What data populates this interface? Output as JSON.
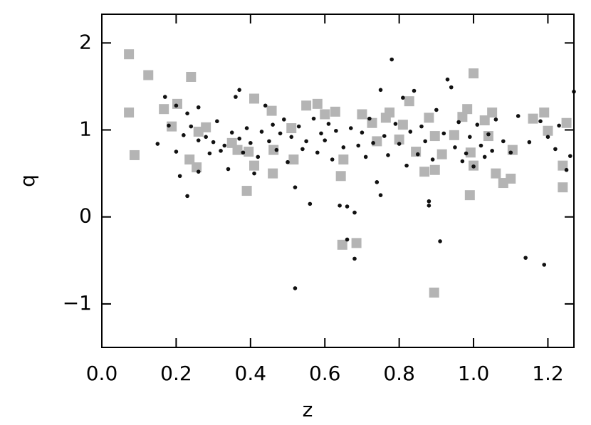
{
  "chart_data": {
    "type": "scatter",
    "xlabel": "z",
    "ylabel": "q",
    "xlim": [
      0,
      1.27
    ],
    "ylim": [
      -1.5,
      2.33
    ],
    "xticks": [
      {
        "value": 0,
        "label": "0.0"
      },
      0.2,
      0.4,
      0.6,
      0.8,
      {
        "value": 1,
        "label": "1.0"
      },
      1.2
    ],
    "yticks": [
      {
        "value": -1,
        "label": "−1"
      },
      0,
      1,
      2
    ],
    "series": [
      {
        "color": "#b4b4b4",
        "marker": "square",
        "x": [
          0.073,
          0.073,
          0.088,
          0.125,
          0.167,
          0.24,
          0.203,
          0.188,
          0.236,
          0.255,
          0.26,
          0.28,
          0.35,
          0.365,
          0.395,
          0.41,
          0.41,
          0.39,
          0.462,
          0.457,
          0.46,
          0.51,
          0.516,
          0.55,
          0.58,
          0.6,
          0.628,
          0.643,
          0.65,
          0.647,
          0.685,
          0.7,
          0.727,
          0.74,
          0.764,
          0.774,
          0.8,
          0.81,
          0.845,
          0.827,
          0.868,
          0.88,
          0.896,
          0.915,
          0.896,
          0.894,
          0.948,
          0.97,
          0.983,
          1.0,
          0.992,
          1.0,
          1.03,
          1.04,
          1.05,
          1.06,
          1.08,
          0.99,
          1.1,
          1.105,
          1.16,
          1.19,
          1.2,
          1.24,
          1.25,
          1.24
        ],
        "values": [
          1.87,
          1.2,
          0.71,
          1.63,
          1.24,
          1.61,
          1.3,
          1.04,
          0.66,
          0.57,
          0.98,
          1.03,
          0.85,
          0.77,
          0.75,
          1.36,
          0.59,
          0.3,
          0.77,
          1.22,
          0.5,
          1.02,
          0.66,
          1.28,
          1.3,
          1.18,
          1.21,
          0.47,
          0.66,
          -0.32,
          -0.3,
          1.18,
          1.08,
          0.87,
          1.14,
          1.2,
          0.89,
          1.06,
          0.75,
          1.33,
          0.52,
          1.14,
          0.93,
          0.72,
          0.54,
          -0.87,
          0.94,
          1.15,
          1.24,
          1.65,
          0.74,
          0.59,
          1.11,
          0.93,
          1.2,
          0.5,
          0.39,
          0.25,
          0.44,
          0.77,
          1.13,
          1.2,
          0.99,
          0.34,
          1.08,
          0.59
        ]
      },
      {
        "color": "#111111",
        "marker": "circle",
        "x": [
          0.15,
          0.17,
          0.18,
          0.2,
          0.2,
          0.21,
          0.22,
          0.23,
          0.23,
          0.24,
          0.26,
          0.26,
          0.26,
          0.28,
          0.29,
          0.3,
          0.31,
          0.32,
          0.33,
          0.34,
          0.35,
          0.36,
          0.37,
          0.37,
          0.38,
          0.39,
          0.4,
          0.41,
          0.42,
          0.43,
          0.44,
          0.45,
          0.46,
          0.47,
          0.48,
          0.49,
          0.5,
          0.51,
          0.52,
          0.52,
          0.53,
          0.54,
          0.55,
          0.56,
          0.57,
          0.58,
          0.59,
          0.6,
          0.61,
          0.62,
          0.63,
          0.64,
          0.65,
          0.66,
          0.66,
          0.67,
          0.68,
          0.68,
          0.69,
          0.7,
          0.71,
          0.72,
          0.73,
          0.74,
          0.75,
          0.75,
          0.76,
          0.77,
          0.78,
          0.79,
          0.8,
          0.81,
          0.82,
          0.83,
          0.84,
          0.85,
          0.86,
          0.87,
          0.88,
          0.88,
          0.89,
          0.9,
          0.91,
          0.92,
          0.93,
          0.94,
          0.95,
          0.96,
          0.97,
          0.98,
          0.99,
          1.0,
          1.01,
          1.02,
          1.03,
          1.04,
          1.05,
          1.06,
          1.08,
          1.1,
          1.12,
          1.14,
          1.15,
          1.18,
          1.19,
          1.2,
          1.22,
          1.23,
          1.25,
          1.26,
          1.27
        ],
        "values": [
          0.84,
          1.38,
          1.05,
          0.75,
          1.28,
          0.47,
          0.94,
          0.24,
          1.19,
          1.04,
          1.26,
          0.88,
          0.52,
          0.92,
          0.73,
          0.86,
          1.1,
          0.76,
          0.82,
          0.55,
          0.97,
          1.38,
          1.46,
          0.9,
          0.74,
          1.02,
          0.85,
          0.5,
          0.69,
          0.98,
          1.28,
          0.87,
          1.06,
          0.77,
          0.96,
          1.12,
          0.63,
          0.92,
          0.34,
          -0.82,
          1.04,
          0.78,
          0.87,
          0.15,
          1.13,
          0.74,
          0.96,
          0.88,
          1.07,
          0.66,
          0.99,
          0.13,
          0.8,
          -0.26,
          0.12,
          1.02,
          0.05,
          -0.48,
          0.82,
          0.97,
          0.69,
          1.13,
          0.85,
          0.4,
          1.46,
          0.25,
          0.93,
          0.71,
          1.81,
          1.07,
          0.84,
          1.37,
          0.59,
          0.98,
          1.45,
          0.72,
          1.04,
          0.87,
          0.13,
          0.18,
          0.66,
          1.23,
          -0.28,
          0.96,
          1.58,
          1.49,
          0.8,
          1.09,
          0.64,
          0.73,
          0.92,
          0.58,
          1.06,
          0.82,
          0.69,
          0.95,
          0.76,
          1.12,
          0.87,
          0.74,
          1.16,
          -0.47,
          0.86,
          1.1,
          -0.55,
          0.92,
          0.78,
          1.05,
          0.54,
          0.7,
          1.44
        ]
      }
    ]
  }
}
